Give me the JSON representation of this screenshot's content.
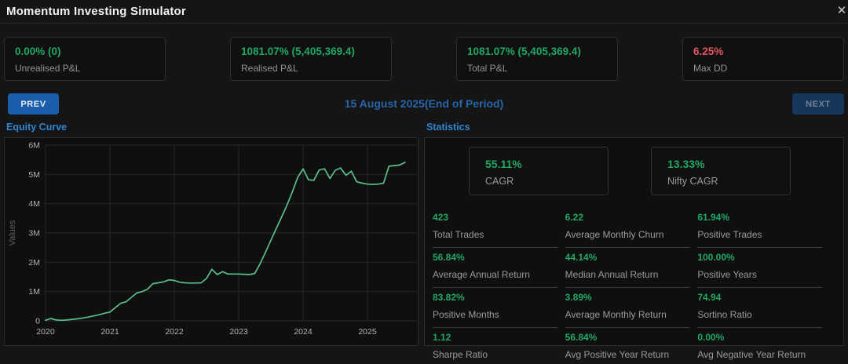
{
  "window": {
    "title": "Momentum Investing Simulator",
    "close_glyph": "✕"
  },
  "summary_cards": [
    {
      "value": "0.00% (0)",
      "label": "Unrealised P&L",
      "status": "positive"
    },
    {
      "value": "1081.07% (5,405,369.4)",
      "label": "Realised P&L",
      "status": "positive"
    },
    {
      "value": "1081.07% (5,405,369.4)",
      "label": "Total P&L",
      "status": "positive"
    },
    {
      "value": "6.25%",
      "label": "Max DD",
      "status": "negative"
    }
  ],
  "nav": {
    "prev_label": "PREV",
    "next_label": "NEXT",
    "period_label": "15 August 2025(End of Period)"
  },
  "sections": {
    "equity_curve_title": "Equity Curve",
    "statistics_title": "Statistics"
  },
  "statistics": {
    "cagr_cards": [
      {
        "value": "55.11%",
        "label": "CAGR"
      },
      {
        "value": "13.33%",
        "label": "Nifty CAGR"
      }
    ],
    "stats": [
      {
        "value": "423",
        "label": "Total Trades"
      },
      {
        "value": "6.22",
        "label": "Average Monthly Churn"
      },
      {
        "value": "61.94%",
        "label": "Positive Trades"
      },
      {
        "value": "56.84%",
        "label": "Average Annual Return"
      },
      {
        "value": "44.14%",
        "label": "Median Annual Return"
      },
      {
        "value": "100.00%",
        "label": "Positive Years"
      },
      {
        "value": "83.82%",
        "label": "Positive Months"
      },
      {
        "value": "3.89%",
        "label": "Average Monthly Return"
      },
      {
        "value": "74.94",
        "label": "Sortino Ratio"
      },
      {
        "value": "1.12",
        "label": "Sharpe Ratio"
      },
      {
        "value": "56.84%",
        "label": "Avg Positive Year Return"
      },
      {
        "value": "0.00%",
        "label": "Avg Negative Year Return"
      }
    ]
  },
  "chart_data": {
    "type": "line",
    "title": "Equity Curve",
    "ylabel": "Values",
    "xlabel": "",
    "x_start": 2020,
    "x_step": "month",
    "xticks": [
      2020,
      2021,
      2022,
      2023,
      2024,
      2025
    ],
    "yticks_labels": [
      "0",
      "1M",
      "2M",
      "3M",
      "4M",
      "5M",
      "6M"
    ],
    "ylim_millions": [
      0,
      6
    ],
    "grid": true,
    "legend": "none",
    "line_color": "#58c08c",
    "grid_color": "#282828",
    "values_millions": [
      0.02,
      0.08,
      0.03,
      0.02,
      0.03,
      0.05,
      0.07,
      0.1,
      0.13,
      0.17,
      0.21,
      0.26,
      0.3,
      0.45,
      0.6,
      0.65,
      0.8,
      0.95,
      1.0,
      1.08,
      1.27,
      1.3,
      1.33,
      1.4,
      1.38,
      1.32,
      1.3,
      1.29,
      1.29,
      1.3,
      1.45,
      1.76,
      1.58,
      1.68,
      1.6,
      1.6,
      1.6,
      1.59,
      1.58,
      1.62,
      1.95,
      2.35,
      2.75,
      3.15,
      3.55,
      3.95,
      4.4,
      4.9,
      5.19,
      4.82,
      4.8,
      5.15,
      5.19,
      4.86,
      5.14,
      5.22,
      4.97,
      5.11,
      4.75,
      4.7,
      4.67,
      4.66,
      4.67,
      4.7,
      5.28,
      5.3,
      5.32,
      5.41
    ],
    "end_value": 5405369.4
  },
  "colors": {
    "positive": "#1fa863",
    "negative": "#e25563",
    "accent_blue": "#2f86d2",
    "date_blue": "#2766ab",
    "prev_bg": "#1a5dab",
    "next_bg": "#16375c"
  }
}
